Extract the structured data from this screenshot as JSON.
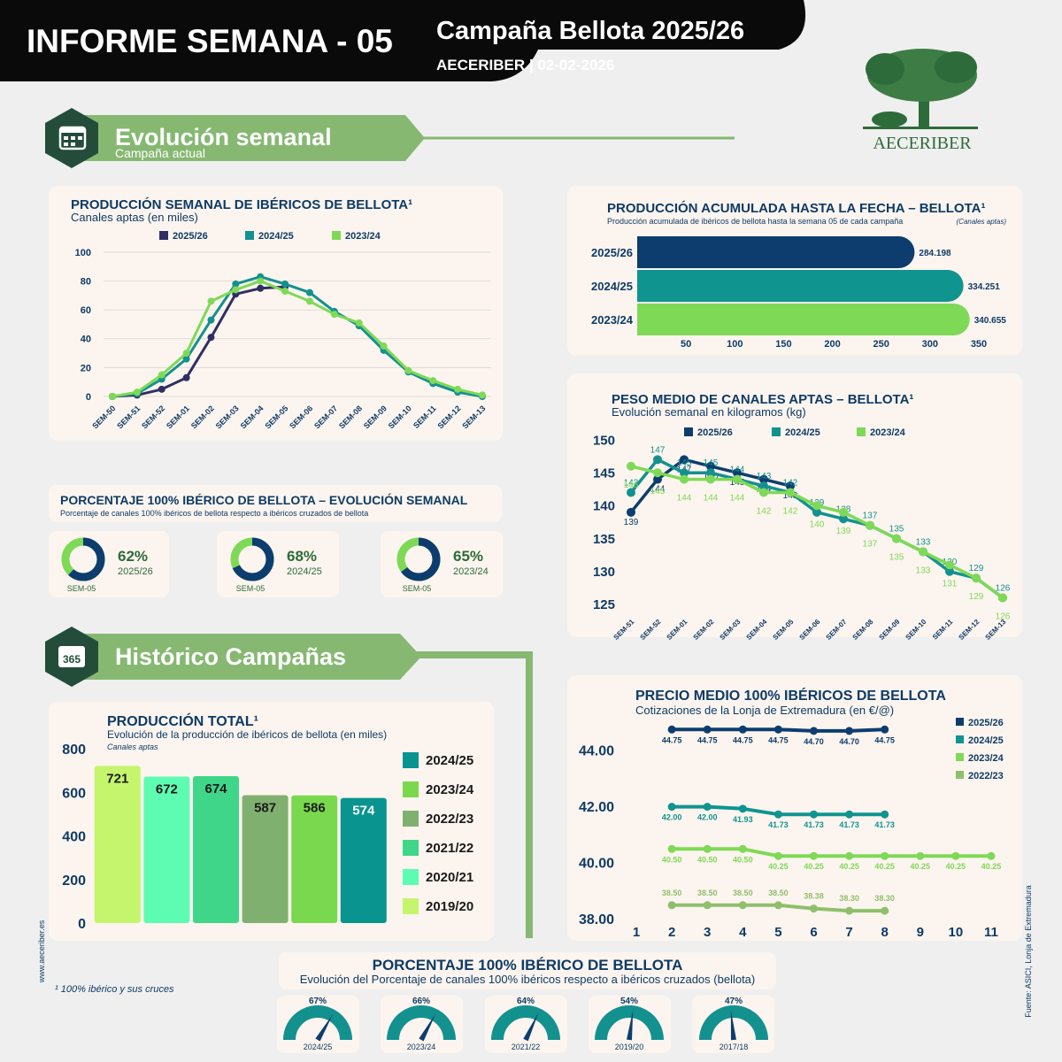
{
  "header": {
    "title": "INFORME SEMANA - 05",
    "campaign": "Campaña Bellota 2025/26",
    "subtitle": "AECERIBER | 02-02-2026",
    "logo": "AECERIBER"
  },
  "sections": [
    {
      "title": "Evolución semanal",
      "subtitle": "Campaña actual"
    },
    {
      "title": "Histórico Campañas",
      "icon": "365"
    }
  ],
  "footnote": "¹ 100% ibérico y sus cruces",
  "website": "www.aeceriber.es",
  "source": "Fuente: ASICI, Lonja de Extremadura",
  "chart_data": [
    {
      "type": "line",
      "title": "PRODUCCIÓN SEMANAL DE IBÉRICOS DE BELLOTA¹",
      "subtitle": "Canales aptas (en miles)",
      "categories": [
        "SEM-50",
        "SEM-51",
        "SEM-52",
        "SEM-01",
        "SEM-02",
        "SEM-03",
        "SEM-04",
        "SEM-05",
        "SEM-06",
        "SEM-07",
        "SEM-08",
        "SEM-09",
        "SEM-10",
        "SEM-11",
        "SEM-12",
        "SEM-13"
      ],
      "series": [
        {
          "name": "2025/26",
          "color": "#2f2f63",
          "values": [
            0,
            1,
            5,
            13,
            41,
            71,
            75,
            76,
            null,
            null,
            null,
            null,
            null,
            null,
            null,
            null
          ]
        },
        {
          "name": "2024/25",
          "color": "#13918f",
          "values": [
            0,
            2,
            12,
            26,
            53,
            78,
            83,
            78,
            72,
            59,
            49,
            32,
            17,
            9,
            3,
            0
          ]
        },
        {
          "name": "2023/24",
          "color": "#7ed957",
          "values": [
            0,
            3,
            15,
            30,
            66,
            74,
            80,
            73,
            66,
            57,
            51,
            35,
            18,
            11,
            5,
            1
          ]
        }
      ],
      "ylim": [
        0,
        100
      ],
      "yticks": [
        0,
        20,
        40,
        60,
        80,
        100
      ],
      "grid": true
    },
    {
      "type": "hbar",
      "title": "PRODUCCIÓN ACUMULADA HASTA LA FECHA – BELLOTA¹",
      "subtitle": "Producción acumulada de ibéricos de bellota hasta la semana 05 de cada campaña",
      "note": "(Canales aptas)",
      "categories": [
        "2025/26",
        "2024/25",
        "2023/24"
      ],
      "values": [
        284.198,
        334.251,
        340.655
      ],
      "colors": [
        "#0c3d6e",
        "#0f9490",
        "#7ed957"
      ],
      "xlim": [
        0,
        350
      ],
      "xticks": [
        50,
        100,
        150,
        200,
        250,
        300,
        350
      ]
    },
    {
      "type": "line",
      "title": "PESO MEDIO DE CANALES APTAS – BELLOTA¹",
      "subtitle": "Evolución semanal en kilogramos (kg)",
      "categories": [
        "SEM-51",
        "SEM-52",
        "SEM-01",
        "SEM-02",
        "SEM-03",
        "SEM-04",
        "SEM-05",
        "SEM-06",
        "SEM-07",
        "SEM-08",
        "SEM-09",
        "SEM-10",
        "SEM-11",
        "SEM-12",
        "SEM-13"
      ],
      "series": [
        {
          "name": "2025/26",
          "color": "#0c3d6e",
          "values": [
            139,
            144,
            147,
            146,
            145,
            144,
            143,
            null,
            null,
            null,
            null,
            null,
            null,
            null,
            null
          ]
        },
        {
          "name": "2024/25",
          "color": "#13918f",
          "values": [
            142,
            147,
            145,
            145,
            144,
            143,
            142,
            139,
            138,
            137,
            135,
            133,
            130,
            129,
            126
          ]
        },
        {
          "name": "2023/24",
          "color": "#7ed957",
          "values": [
            146,
            145,
            144,
            144,
            144,
            142,
            142,
            140,
            139,
            137,
            135,
            133,
            131,
            129,
            126
          ]
        }
      ],
      "ylim": [
        124,
        150
      ],
      "yticks": [
        125,
        130,
        135,
        140,
        145,
        150
      ],
      "grid": false
    },
    {
      "type": "donut",
      "title": "PORCENTAJE 100% IBÉRICO DE BELLOTA – EVOLUCIÓN SEMANAL",
      "subtitle": "Porcentaje de canales 100% ibéricos de bellota respecto a ibéricos cruzados de bellota",
      "categories": [
        "2025/26",
        "2024/25",
        "2023/24"
      ],
      "values": [
        62,
        68,
        65
      ],
      "value_labels": [
        "62%",
        "68%",
        "65%"
      ],
      "sublabels": [
        "SEM-05",
        "SEM-05",
        "SEM-05"
      ],
      "color": "#0c3d6e",
      "rest_color": "#7ed957"
    },
    {
      "type": "bar",
      "title": "PRODUCCIÓN TOTAL¹",
      "subtitle": "Evolución de la producción de ibéricos de bellota (en miles)",
      "note": "Canales aptas",
      "categories": [
        "2019/20",
        "2020/21",
        "2021/22",
        "2022/23",
        "2023/24",
        "2024/25"
      ],
      "values": [
        721,
        672,
        674,
        587,
        586,
        574
      ],
      "colors": [
        "#c4f56d",
        "#5efcb2",
        "#3fd68a",
        "#80b070",
        "#7ad84e",
        "#0a9490"
      ],
      "ylim": [
        0,
        800
      ],
      "yticks": [
        0,
        200,
        400,
        600,
        800
      ]
    },
    {
      "type": "line",
      "title": "PRECIO MEDIO 100% IBÉRICOS DE BELLOTA",
      "subtitle": "Cotizaciones de la Lonja de Extremadura (en €/@)",
      "x": [
        1,
        2,
        3,
        4,
        5,
        6,
        7,
        8,
        9,
        10,
        11
      ],
      "series": [
        {
          "name": "2025/26",
          "color": "#0c3d6e",
          "values": [
            null,
            44.75,
            44.75,
            44.75,
            44.75,
            44.7,
            44.7,
            44.75,
            null,
            null,
            null
          ],
          "value_labels": [
            null,
            "44.75",
            "44.75",
            "44.75",
            "44.75",
            "44.70",
            "44.70",
            "44.75",
            null,
            null,
            null
          ]
        },
        {
          "name": "2024/25",
          "color": "#0f9490",
          "values": [
            null,
            42,
            42,
            41.93,
            41.73,
            41.73,
            41.73,
            41.73,
            null,
            null,
            null
          ],
          "value_labels": [
            null,
            "42.00",
            "42.00",
            "41.93",
            "41.73",
            "41.73",
            "41.73",
            "41.73",
            null,
            null,
            null
          ]
        },
        {
          "name": "2023/24",
          "color": "#7ed957",
          "values": [
            null,
            40.5,
            40.5,
            40.5,
            40.25,
            40.25,
            40.25,
            40.25,
            40.25,
            40.25,
            40.25
          ],
          "value_labels": [
            null,
            "40.50",
            "40.50",
            "40.50",
            "40.25",
            "40.25",
            "40.25",
            "40.25",
            "40.25",
            "40.25",
            "40.25"
          ]
        },
        {
          "name": "2022/23",
          "color": "#8fbf6c",
          "values": [
            null,
            38.5,
            38.5,
            38.5,
            38.5,
            38.38,
            38.3,
            38.3,
            null,
            null,
            null
          ],
          "value_labels": [
            null,
            "38.50",
            "38.50",
            "38.50",
            "38.50",
            "38.38",
            "38.30",
            "38.30",
            null,
            null,
            null
          ]
        }
      ],
      "xlim": [
        0.6,
        11.4
      ],
      "xticks": [
        1,
        2,
        3,
        4,
        5,
        6,
        7,
        8,
        9,
        10,
        11
      ],
      "ylim": [
        37.8,
        45.2
      ],
      "yticks": [
        {
          "value": 38,
          "label": "38.00"
        },
        {
          "value": 40,
          "label": "40.00"
        },
        {
          "value": 42,
          "label": "42.00"
        },
        {
          "value": 44,
          "label": "44.00"
        }
      ],
      "grid": false
    },
    {
      "type": "gauge",
      "title": "PORCENTAJE 100% IBÉRICO DE BELLOTA",
      "subtitle": "Evolución del Porcentaje de canales 100% ibéricos respecto a ibéricos cruzados (bellota)",
      "categories": [
        "2024/25",
        "2023/24",
        "2021/22",
        "2019/20",
        "2017/18"
      ],
      "values": [
        67,
        66,
        64,
        54,
        47
      ],
      "value_labels": [
        "67%",
        "66%",
        "64%",
        "54%",
        "47%"
      ],
      "color": "#13918f",
      "needle_color": "#0c3d6e"
    }
  ]
}
